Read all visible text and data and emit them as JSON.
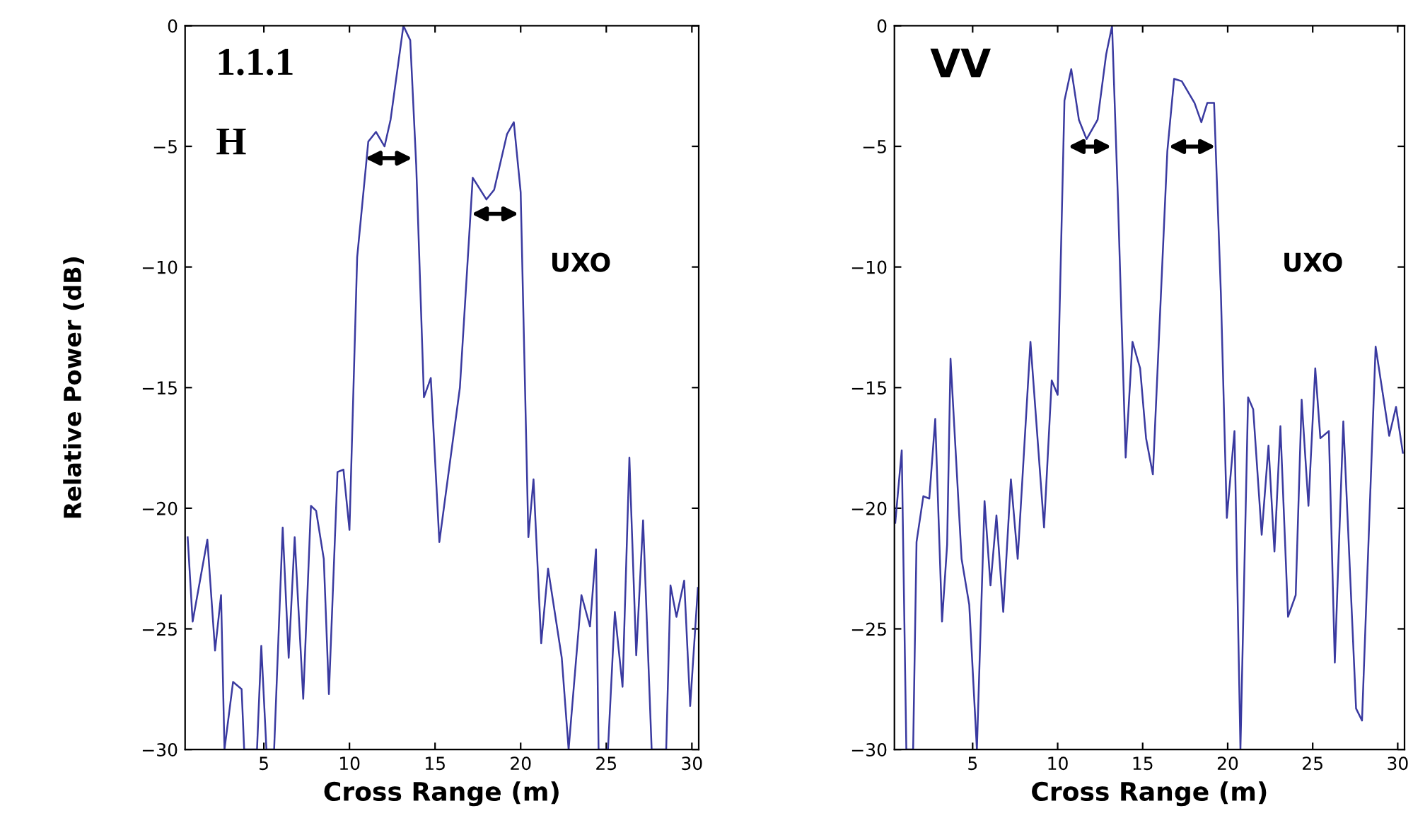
{
  "chart_data": [
    {
      "type": "line",
      "ylabel": "Relative Power (dB)",
      "xlabel": "Cross Range (m)",
      "annotations": [
        "1.1.1",
        "H",
        "UXO"
      ],
      "xlim": [
        0.4,
        30.4
      ],
      "ylim": [
        -30,
        0
      ],
      "xticks": [
        5,
        10,
        15,
        20,
        25,
        30
      ],
      "yticks": [
        {
          "value": 0,
          "label": "0"
        },
        {
          "value": -5,
          "label": "−5"
        },
        {
          "value": -10,
          "label": "−10"
        },
        {
          "value": -15,
          "label": "−15"
        },
        {
          "value": -20,
          "label": "−20"
        },
        {
          "value": -25,
          "label": "−25"
        },
        {
          "value": -30,
          "label": "−30"
        }
      ],
      "grid": false,
      "marker": "none",
      "line_style": "solid",
      "series": [
        {
          "color": "#3a3aa0",
          "x": [
            0.55,
            0.84,
            1.7,
            2.15,
            2.5,
            2.7,
            3.2,
            3.7,
            3.85,
            4.6,
            4.85,
            5.15,
            5.6,
            6.1,
            6.45,
            6.8,
            7.3,
            7.75,
            8.05,
            8.5,
            8.8,
            9.3,
            9.65,
            10.0,
            10.45,
            11.1,
            11.55,
            12.05,
            12.4,
            13.15,
            13.55,
            13.9,
            14.35,
            14.75,
            15.25,
            16.45,
            17.2,
            18.0,
            18.45,
            19.2,
            19.6,
            20.0,
            20.45,
            20.75,
            21.2,
            21.6,
            22.4,
            22.8,
            23.55,
            24.05,
            24.4,
            24.55,
            25.1,
            25.5,
            25.95,
            26.35,
            26.75,
            27.15,
            27.65,
            28.5,
            28.75,
            29.1,
            29.55,
            29.9,
            30.35
          ],
          "values": [
            -21.2,
            -24.7,
            -21.3,
            -25.9,
            -23.6,
            -30,
            -27.2,
            -27.5,
            -30,
            -30,
            -25.7,
            -30,
            -30,
            -20.8,
            -26.2,
            -21.2,
            -27.9,
            -19.9,
            -20.1,
            -22.1,
            -27.7,
            -18.5,
            -18.4,
            -20.9,
            -9.6,
            -4.8,
            -4.4,
            -5.0,
            -3.9,
            0,
            -0.6,
            -5.8,
            -15.4,
            -14.6,
            -21.4,
            -15.0,
            -6.3,
            -7.2,
            -6.8,
            -4.5,
            -4.0,
            -6.9,
            -21.2,
            -18.8,
            -25.6,
            -22.5,
            -26.2,
            -30,
            -23.6,
            -24.9,
            -21.7,
            -30,
            -30,
            -24.3,
            -27.4,
            -17.9,
            -26.1,
            -20.5,
            -30,
            -30,
            -23.2,
            -24.5,
            -23.0,
            -28.2,
            -23.3
          ]
        }
      ]
    },
    {
      "type": "line",
      "xlabel": "Cross Range (m)",
      "annotations": [
        "VV",
        "UXO"
      ],
      "xlim": [
        0.4,
        30.4
      ],
      "ylim": [
        -30,
        0
      ],
      "xticks": [
        5,
        10,
        15,
        20,
        25,
        30
      ],
      "yticks": [
        {
          "value": 0,
          "label": "0"
        },
        {
          "value": -5,
          "label": "−5"
        },
        {
          "value": -10,
          "label": "−10"
        },
        {
          "value": -15,
          "label": "−15"
        },
        {
          "value": -20,
          "label": "−20"
        },
        {
          "value": -25,
          "label": "−25"
        },
        {
          "value": -30,
          "label": "−30"
        }
      ],
      "grid": false,
      "marker": "none",
      "line_style": "solid",
      "series": [
        {
          "color": "#3a3aa0",
          "x": [
            0.45,
            0.83,
            1.1,
            1.5,
            1.7,
            2.1,
            2.45,
            2.8,
            3.2,
            3.5,
            3.7,
            4.35,
            4.8,
            5.25,
            5.7,
            6.05,
            6.4,
            6.8,
            7.25,
            7.65,
            8.4,
            9.2,
            9.65,
            10.0,
            10.4,
            10.8,
            11.25,
            11.7,
            12.35,
            12.85,
            13.2,
            13.55,
            14.0,
            14.4,
            14.85,
            15.2,
            15.6,
            16.45,
            16.85,
            17.3,
            18.05,
            18.45,
            18.8,
            19.2,
            19.6,
            19.95,
            20.4,
            20.75,
            21.2,
            21.5,
            22.0,
            22.4,
            22.75,
            23.1,
            23.55,
            24.0,
            24.35,
            24.75,
            25.15,
            25.45,
            25.95,
            26.3,
            26.45,
            26.8,
            27.55,
            27.9,
            28.7,
            29.5,
            29.9,
            30.3
          ],
          "values": [
            -20.6,
            -17.6,
            -30,
            -30,
            -21.4,
            -19.5,
            -19.6,
            -16.3,
            -24.7,
            -21.5,
            -13.8,
            -22.1,
            -24.0,
            -30,
            -19.7,
            -23.2,
            -20.3,
            -24.3,
            -18.8,
            -22.1,
            -13.1,
            -20.8,
            -14.7,
            -15.3,
            -3.1,
            -1.8,
            -3.9,
            -4.7,
            -3.9,
            -1.2,
            0,
            -7.3,
            -17.9,
            -13.1,
            -14.2,
            -17.1,
            -18.6,
            -5.2,
            -2.2,
            -2.3,
            -3.2,
            -4.0,
            -3.2,
            -3.2,
            -11.1,
            -20.4,
            -16.8,
            -30,
            -15.4,
            -15.9,
            -21.1,
            -17.4,
            -21.8,
            -16.6,
            -24.5,
            -23.6,
            -15.5,
            -19.9,
            -14.2,
            -17.1,
            -16.8,
            -26.4,
            -23.4,
            -16.4,
            -28.3,
            -28.8,
            -13.3,
            -17.0,
            -15.8,
            -17.7
          ]
        }
      ]
    }
  ]
}
